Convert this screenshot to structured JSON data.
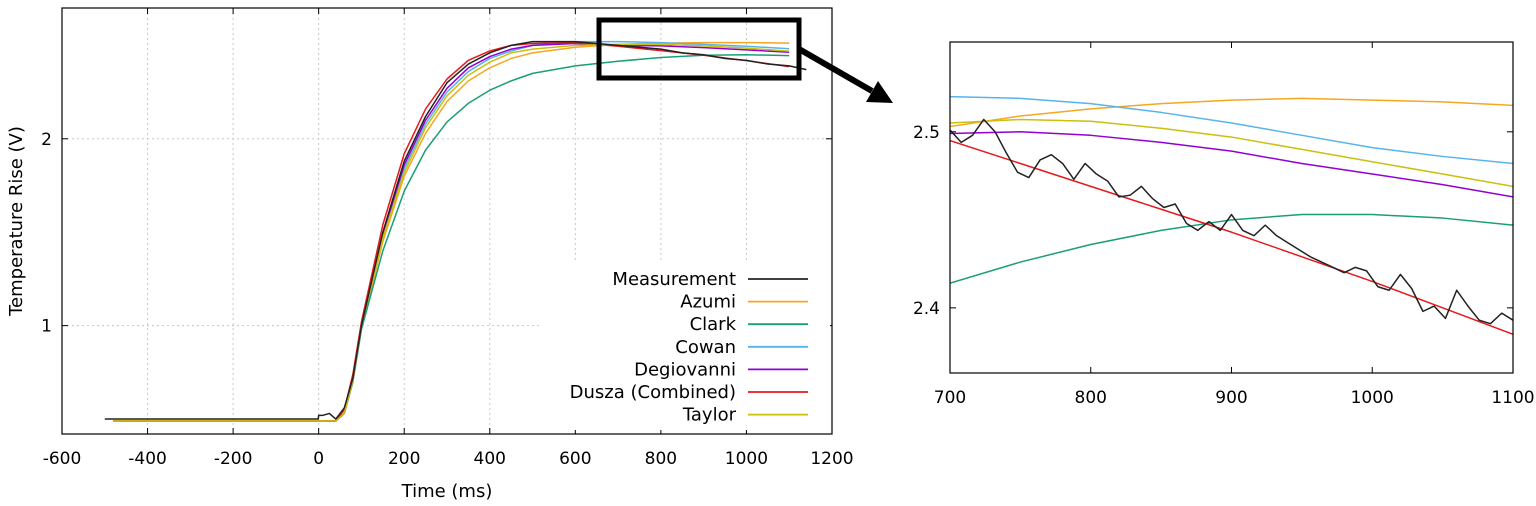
{
  "colors": {
    "Measurement": "#222222",
    "Azumi": "#f5a623",
    "Clark": "#1a9e77",
    "Cowan": "#56b4e9",
    "Degiovanni": "#9400d3",
    "Dusza (Combined)": "#e41a1c",
    "Taylor": "#c9c00f",
    "annotation": "#000000"
  },
  "chart_data": [
    {
      "type": "line",
      "title": "",
      "xlabel": "Time (ms)",
      "ylabel": "Temperature Rise (V)",
      "xlim": [
        -600,
        1200
      ],
      "ylim": [
        0.42,
        2.7
      ],
      "xticks": [
        -600,
        -400,
        -200,
        0,
        200,
        400,
        600,
        800,
        1000,
        1200
      ],
      "yticks": [
        1,
        2
      ],
      "grid": true,
      "legend_position": "bottom-right",
      "legend": [
        "Measurement",
        "Azumi",
        "Clark",
        "Cowan",
        "Degiovanni",
        "Dusza (Combined)",
        "Taylor"
      ],
      "series": [
        {
          "name": "Measurement",
          "x": [
            -500,
            -400,
            -200,
            -1,
            0,
            10,
            25,
            40,
            60,
            80,
            100,
            150,
            200,
            250,
            300,
            350,
            400,
            450,
            500,
            550,
            600,
            650,
            700,
            750,
            800,
            850,
            900,
            950,
            1000,
            1050,
            1100,
            1140
          ],
          "y": [
            0.5,
            0.5,
            0.5,
            0.5,
            0.52,
            0.52,
            0.53,
            0.5,
            0.56,
            0.72,
            1.0,
            1.5,
            1.88,
            2.12,
            2.3,
            2.4,
            2.46,
            2.5,
            2.52,
            2.52,
            2.52,
            2.51,
            2.5,
            2.49,
            2.48,
            2.46,
            2.45,
            2.43,
            2.42,
            2.4,
            2.39,
            2.37
          ]
        },
        {
          "name": "Azumi",
          "x": [
            -480,
            -200,
            0,
            40,
            60,
            80,
            100,
            150,
            200,
            250,
            300,
            350,
            400,
            450,
            500,
            600,
            700,
            800,
            900,
            1000,
            1100
          ],
          "y": [
            0.49,
            0.49,
            0.49,
            0.49,
            0.53,
            0.7,
            0.98,
            1.45,
            1.8,
            2.03,
            2.2,
            2.31,
            2.38,
            2.43,
            2.46,
            2.49,
            2.505,
            2.512,
            2.515,
            2.515,
            2.512
          ]
        },
        {
          "name": "Clark",
          "x": [
            -480,
            -200,
            0,
            40,
            60,
            80,
            100,
            150,
            200,
            250,
            300,
            350,
            400,
            450,
            500,
            600,
            700,
            800,
            900,
            1000,
            1100
          ],
          "y": [
            0.49,
            0.49,
            0.49,
            0.49,
            0.53,
            0.7,
            0.98,
            1.4,
            1.72,
            1.94,
            2.09,
            2.19,
            2.26,
            2.31,
            2.35,
            2.39,
            2.415,
            2.435,
            2.447,
            2.45,
            2.445
          ]
        },
        {
          "name": "Cowan",
          "x": [
            -480,
            -200,
            0,
            40,
            60,
            80,
            100,
            150,
            200,
            250,
            300,
            350,
            400,
            450,
            500,
            600,
            700,
            800,
            900,
            1000,
            1100
          ],
          "y": [
            0.49,
            0.49,
            0.49,
            0.49,
            0.53,
            0.71,
            1.0,
            1.48,
            1.84,
            2.08,
            2.25,
            2.36,
            2.43,
            2.47,
            2.5,
            2.52,
            2.52,
            2.515,
            2.505,
            2.495,
            2.482
          ]
        },
        {
          "name": "Degiovanni",
          "x": [
            -480,
            -200,
            0,
            40,
            60,
            80,
            100,
            150,
            200,
            250,
            300,
            350,
            400,
            450,
            500,
            600,
            700,
            800,
            900,
            1000,
            1100
          ],
          "y": [
            0.49,
            0.49,
            0.49,
            0.49,
            0.53,
            0.71,
            1.0,
            1.49,
            1.86,
            2.1,
            2.27,
            2.38,
            2.44,
            2.48,
            2.5,
            2.51,
            2.5,
            2.497,
            2.488,
            2.476,
            2.463
          ]
        },
        {
          "name": "Dusza (Combined)",
          "x": [
            -480,
            -200,
            0,
            40,
            60,
            80,
            100,
            150,
            200,
            250,
            300,
            350,
            400,
            450,
            500,
            600,
            700,
            800,
            900,
            1000,
            1100
          ],
          "y": [
            0.49,
            0.49,
            0.49,
            0.49,
            0.55,
            0.74,
            1.02,
            1.54,
            1.92,
            2.16,
            2.32,
            2.42,
            2.47,
            2.5,
            2.51,
            2.515,
            2.495,
            2.472,
            2.447,
            2.418,
            2.386
          ]
        },
        {
          "name": "Taylor",
          "x": [
            -480,
            -200,
            0,
            40,
            60,
            80,
            100,
            150,
            200,
            250,
            300,
            350,
            400,
            450,
            500,
            600,
            700,
            800,
            900,
            1000,
            1100
          ],
          "y": [
            0.49,
            0.49,
            0.49,
            0.49,
            0.53,
            0.71,
            1.0,
            1.47,
            1.82,
            2.06,
            2.23,
            2.34,
            2.41,
            2.46,
            2.48,
            2.5,
            2.505,
            2.505,
            2.497,
            2.485,
            2.469
          ]
        }
      ]
    },
    {
      "type": "line",
      "title": "",
      "xlabel": "",
      "ylabel": "",
      "xlim": [
        700,
        1100
      ],
      "ylim": [
        2.363,
        2.551
      ],
      "xticks": [
        700,
        800,
        900,
        1000,
        1100
      ],
      "yticks": [
        2.4,
        2.5
      ],
      "grid": false,
      "series": [
        {
          "name": "Measurement",
          "x": [
            700,
            708,
            716,
            724,
            732,
            740,
            748,
            756,
            764,
            772,
            780,
            788,
            796,
            804,
            812,
            820,
            828,
            836,
            844,
            852,
            860,
            868,
            876,
            884,
            892,
            900,
            908,
            916,
            924,
            932,
            940,
            948,
            956,
            964,
            972,
            980,
            988,
            996,
            1004,
            1012,
            1020,
            1028,
            1036,
            1044,
            1052,
            1060,
            1068,
            1076,
            1084,
            1092,
            1100
          ],
          "y": [
            2.501,
            2.494,
            2.498,
            2.507,
            2.5,
            2.488,
            2.477,
            2.474,
            2.484,
            2.487,
            2.482,
            2.473,
            2.482,
            2.476,
            2.472,
            2.463,
            2.464,
            2.469,
            2.462,
            2.457,
            2.459,
            2.448,
            2.444,
            2.449,
            2.444,
            2.453,
            2.444,
            2.441,
            2.447,
            2.441,
            2.437,
            2.433,
            2.429,
            2.426,
            2.423,
            2.42,
            2.423,
            2.421,
            2.412,
            2.41,
            2.419,
            2.411,
            2.398,
            2.401,
            2.394,
            2.41,
            2.401,
            2.393,
            2.391,
            2.397,
            2.393
          ]
        },
        {
          "name": "Azumi",
          "x": [
            700,
            750,
            800,
            850,
            900,
            950,
            1000,
            1050,
            1100
          ],
          "y": [
            2.503,
            2.509,
            2.513,
            2.516,
            2.518,
            2.519,
            2.518,
            2.517,
            2.515
          ]
        },
        {
          "name": "Clark",
          "x": [
            700,
            750,
            800,
            850,
            900,
            950,
            1000,
            1050,
            1100
          ],
          "y": [
            2.414,
            2.426,
            2.436,
            2.444,
            2.45,
            2.453,
            2.453,
            2.451,
            2.447
          ]
        },
        {
          "name": "Cowan",
          "x": [
            700,
            750,
            800,
            850,
            900,
            950,
            1000,
            1050,
            1100
          ],
          "y": [
            2.52,
            2.519,
            2.516,
            2.511,
            2.505,
            2.498,
            2.491,
            2.486,
            2.482
          ]
        },
        {
          "name": "Degiovanni",
          "x": [
            700,
            750,
            800,
            850,
            900,
            950,
            1000,
            1050,
            1100
          ],
          "y": [
            2.499,
            2.5,
            2.498,
            2.494,
            2.489,
            2.482,
            2.476,
            2.47,
            2.463
          ]
        },
        {
          "name": "Dusza (Combined)",
          "x": [
            700,
            750,
            800,
            850,
            900,
            950,
            1000,
            1050,
            1100
          ],
          "y": [
            2.495,
            2.482,
            2.469,
            2.456,
            2.443,
            2.429,
            2.415,
            2.4,
            2.385
          ]
        },
        {
          "name": "Taylor",
          "x": [
            700,
            750,
            800,
            850,
            900,
            950,
            1000,
            1050,
            1100
          ],
          "y": [
            2.505,
            2.507,
            2.506,
            2.502,
            2.497,
            2.49,
            2.483,
            2.476,
            2.469
          ]
        }
      ]
    }
  ]
}
